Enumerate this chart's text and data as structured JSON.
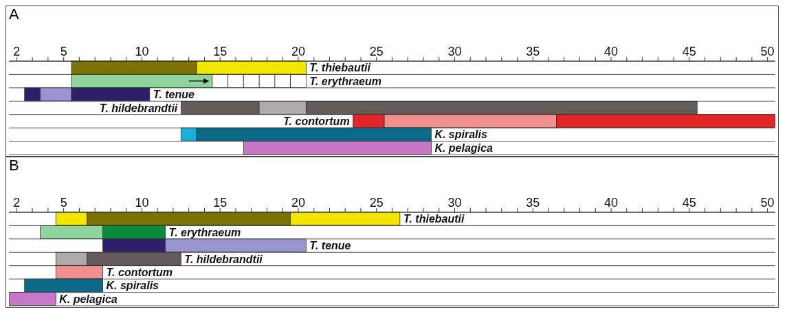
{
  "chart_data": [
    {
      "type": "bar",
      "title": "A",
      "orientation": "horizontal",
      "grid": "y",
      "xlim": [
        1.5,
        50.5
      ],
      "xticks": [
        2,
        {
          "value": 3,
          "label": null
        },
        {
          "value": 4,
          "label": null
        },
        5,
        {
          "value": 6,
          "label": null
        },
        {
          "value": 7,
          "label": null
        },
        {
          "value": 8,
          "label": null
        },
        {
          "value": 9,
          "label": null
        },
        10,
        {
          "value": 11,
          "label": null
        },
        {
          "value": 12,
          "label": null
        },
        {
          "value": 13,
          "label": null
        },
        {
          "value": 14,
          "label": null
        },
        15,
        {
          "value": 16,
          "label": null
        },
        {
          "value": 17,
          "label": null
        },
        {
          "value": 18,
          "label": null
        },
        {
          "value": 19,
          "label": null
        },
        20,
        {
          "value": 21,
          "label": null
        },
        {
          "value": 22,
          "label": null
        },
        {
          "value": 23,
          "label": null
        },
        {
          "value": 24,
          "label": null
        },
        25,
        {
          "value": 26,
          "label": null
        },
        {
          "value": 27,
          "label": null
        },
        {
          "value": 28,
          "label": null
        },
        {
          "value": 29,
          "label": null
        },
        30,
        {
          "value": 31,
          "label": null
        },
        {
          "value": 32,
          "label": null
        },
        {
          "value": 33,
          "label": null
        },
        {
          "value": 34,
          "label": null
        },
        35,
        {
          "value": 36,
          "label": null
        },
        {
          "value": 37,
          "label": null
        },
        {
          "value": 38,
          "label": null
        },
        {
          "value": 39,
          "label": null
        },
        40,
        {
          "value": 41,
          "label": null
        },
        {
          "value": 42,
          "label": null
        },
        {
          "value": 43,
          "label": null
        },
        {
          "value": 44,
          "label": null
        },
        45,
        {
          "value": 46,
          "label": null
        },
        {
          "value": 47,
          "label": null
        },
        {
          "value": 48,
          "label": null
        },
        {
          "value": 49,
          "label": null
        },
        50
      ],
      "categories": [
        "T. thiebautii",
        "T. erythraeum",
        "T. tenue",
        "T. hildebrandtii",
        "T. contortum",
        "K. spiralis",
        "K. pelagica"
      ],
      "series": [
        {
          "colors": [
            "#7a7300",
            "#8fd49a",
            "#2e1f6b",
            "#635a5a",
            "#e32526",
            "#1ab0e0",
            "#c877c8"
          ],
          "base": [
            5.5,
            5.5,
            2.5,
            12.5,
            23.5,
            12.5,
            16.5
          ],
          "values": [
            8,
            9,
            1,
            5,
            2,
            1,
            12
          ]
        },
        {
          "colors": [
            "#f2e600",
            "#ffffff",
            "#9a94d0",
            "#b0aaaa",
            "#f29090",
            "#0a6a88",
            null
          ],
          "base": [
            13.5,
            14.5,
            3.5,
            17.5,
            25.5,
            13.5,
            null
          ],
          "values": [
            7,
            6,
            2,
            3,
            11,
            15,
            null
          ]
        },
        {
          "colors": [
            null,
            null,
            "#2e1f6b",
            "#635a5a",
            "#e32526",
            null,
            null
          ],
          "base": [
            null,
            null,
            5.5,
            20.5,
            36.5,
            null,
            null
          ],
          "values": [
            null,
            null,
            5,
            25,
            14,
            null,
            null
          ]
        }
      ]
    },
    {
      "type": "bar",
      "title": "B",
      "orientation": "horizontal",
      "grid": "y",
      "xlim": [
        1.5,
        50.5
      ],
      "xticks": [
        2,
        {
          "value": 3,
          "label": null
        },
        {
          "value": 4,
          "label": null
        },
        5,
        {
          "value": 6,
          "label": null
        },
        {
          "value": 7,
          "label": null
        },
        {
          "value": 8,
          "label": null
        },
        {
          "value": 9,
          "label": null
        },
        10,
        {
          "value": 11,
          "label": null
        },
        {
          "value": 12,
          "label": null
        },
        {
          "value": 13,
          "label": null
        },
        {
          "value": 14,
          "label": null
        },
        15,
        {
          "value": 16,
          "label": null
        },
        {
          "value": 17,
          "label": null
        },
        {
          "value": 18,
          "label": null
        },
        {
          "value": 19,
          "label": null
        },
        20,
        {
          "value": 21,
          "label": null
        },
        {
          "value": 22,
          "label": null
        },
        {
          "value": 23,
          "label": null
        },
        {
          "value": 24,
          "label": null
        },
        25,
        {
          "value": 26,
          "label": null
        },
        {
          "value": 27,
          "label": null
        },
        {
          "value": 28,
          "label": null
        },
        {
          "value": 29,
          "label": null
        },
        30,
        {
          "value": 31,
          "label": null
        },
        {
          "value": 32,
          "label": null
        },
        {
          "value": 33,
          "label": null
        },
        {
          "value": 34,
          "label": null
        },
        35,
        {
          "value": 36,
          "label": null
        },
        {
          "value": 37,
          "label": null
        },
        {
          "value": 38,
          "label": null
        },
        {
          "value": 39,
          "label": null
        },
        40,
        {
          "value": 41,
          "label": null
        },
        {
          "value": 42,
          "label": null
        },
        {
          "value": 43,
          "label": null
        },
        {
          "value": 44,
          "label": null
        },
        45,
        {
          "value": 46,
          "label": null
        },
        {
          "value": 47,
          "label": null
        },
        {
          "value": 48,
          "label": null
        },
        {
          "value": 49,
          "label": null
        },
        50
      ],
      "categories": [
        "T. thiebautii",
        "T. erythraeum",
        "T. tenue",
        "T. hildebrandtii",
        "T. contortum",
        "K. spiralis",
        "K. pelagica"
      ],
      "series": [
        {
          "colors": [
            "#f2e600",
            "#8fd49a",
            "#2e1f6b",
            "#b0aaaa",
            "#f29090",
            "#0a6a88",
            "#c877c8"
          ],
          "base": [
            4.5,
            3.5,
            7.5,
            4.5,
            4.5,
            2.5,
            1.5
          ],
          "values": [
            2,
            4,
            4,
            2,
            3,
            5,
            3
          ]
        },
        {
          "colors": [
            "#7a7300",
            "#0a8a3a",
            "#9a94d0",
            "#635a5a",
            null,
            null,
            null
          ],
          "base": [
            6.5,
            7.5,
            11.5,
            6.5,
            null,
            null,
            null
          ],
          "values": [
            13,
            4,
            9,
            6,
            null,
            null,
            null
          ]
        },
        {
          "colors": [
            "#f2e600",
            null,
            null,
            null,
            null,
            null,
            null
          ],
          "base": [
            19.5,
            null,
            null,
            null,
            null,
            null,
            null
          ],
          "values": [
            7,
            null,
            null,
            null,
            null,
            null,
            null
          ]
        }
      ]
    }
  ]
}
